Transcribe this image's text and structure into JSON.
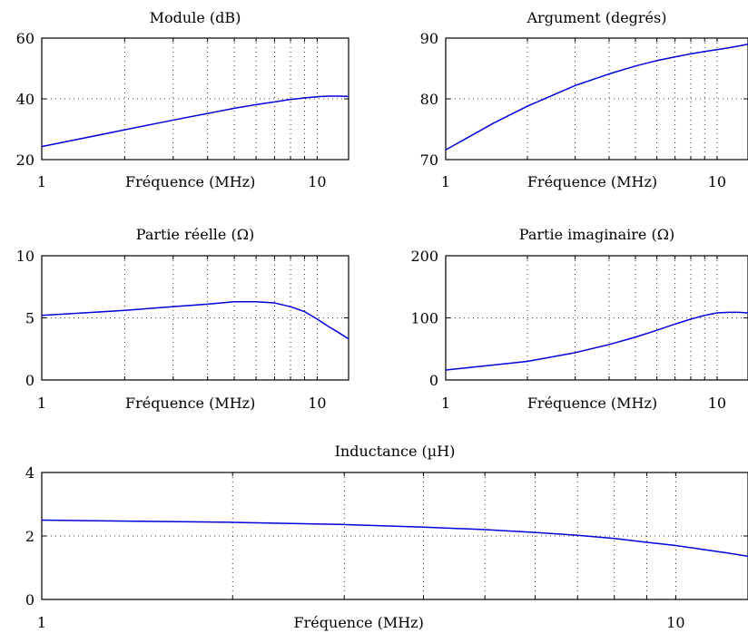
{
  "chart_data": [
    {
      "type": "line",
      "title": "Module (dB)",
      "xlabel": "Fréquence (MHz)",
      "ylabel": "",
      "x_scale": "log",
      "xlim": [
        1,
        13
      ],
      "ylim": [
        20,
        60
      ],
      "x_ticks": [
        1,
        10
      ],
      "x_tick_labels": [
        "1",
        "10"
      ],
      "y_ticks": [
        20,
        40,
        60
      ],
      "y_tick_labels": [
        "20",
        "40",
        "60"
      ],
      "grid": true,
      "x": [
        1,
        2,
        3,
        4,
        5,
        6,
        7,
        8,
        9,
        10,
        11,
        12,
        13
      ],
      "y": [
        24.3,
        29.8,
        33.0,
        35.2,
        36.9,
        38.1,
        39.0,
        39.8,
        40.3,
        40.7,
        40.9,
        40.9,
        40.8
      ]
    },
    {
      "type": "line",
      "title": "Argument (degrés)",
      "xlabel": "Fréquence (MHz)",
      "ylabel": "",
      "x_scale": "log",
      "xlim": [
        1,
        13
      ],
      "ylim": [
        70,
        90
      ],
      "x_ticks": [
        1,
        10
      ],
      "x_tick_labels": [
        "1",
        "10"
      ],
      "y_ticks": [
        70,
        80,
        90
      ],
      "y_tick_labels": [
        "70",
        "80",
        "90"
      ],
      "grid": true,
      "x": [
        1,
        1.5,
        2,
        3,
        4,
        5,
        6,
        7,
        8,
        9,
        10,
        11,
        12,
        13
      ],
      "y": [
        71.6,
        76.0,
        78.8,
        82.2,
        84.1,
        85.4,
        86.3,
        86.9,
        87.4,
        87.8,
        88.1,
        88.4,
        88.7,
        89.0
      ]
    },
    {
      "type": "line",
      "title": "Partie réelle (Ω)",
      "xlabel": "Fréquence (MHz)",
      "ylabel": "",
      "x_scale": "log",
      "xlim": [
        1,
        13
      ],
      "ylim": [
        0,
        10
      ],
      "x_ticks": [
        1,
        10
      ],
      "x_tick_labels": [
        "1",
        "10"
      ],
      "y_ticks": [
        0,
        5,
        10
      ],
      "y_tick_labels": [
        "0",
        "5",
        "10"
      ],
      "grid": true,
      "x": [
        1,
        2,
        3,
        4,
        5,
        6,
        7,
        8,
        9,
        10,
        11,
        12,
        13
      ],
      "y": [
        5.2,
        5.6,
        5.9,
        6.1,
        6.3,
        6.3,
        6.2,
        5.9,
        5.5,
        4.9,
        4.3,
        3.8,
        3.3
      ]
    },
    {
      "type": "line",
      "title": "Partie imaginaire (Ω)",
      "xlabel": "Fréquence (MHz)",
      "ylabel": "",
      "x_scale": "log",
      "xlim": [
        1,
        13
      ],
      "ylim": [
        0,
        200
      ],
      "x_ticks": [
        1,
        10
      ],
      "x_tick_labels": [
        "1",
        "10"
      ],
      "y_ticks": [
        0,
        100,
        200
      ],
      "y_tick_labels": [
        "0",
        "100",
        "200"
      ],
      "grid": true,
      "x": [
        1,
        2,
        3,
        4,
        5,
        6,
        7,
        8,
        9,
        10,
        11,
        12,
        13
      ],
      "y": [
        16,
        30,
        44,
        57,
        69,
        80,
        90,
        98,
        104,
        108,
        109,
        109,
        108
      ]
    },
    {
      "type": "line",
      "title": "Inductance (µH)",
      "xlabel": "Fréquence (MHz)",
      "ylabel": "",
      "x_scale": "log",
      "xlim": [
        1,
        13
      ],
      "ylim": [
        0,
        4
      ],
      "x_ticks": [
        1,
        10
      ],
      "x_tick_labels": [
        "1",
        "10"
      ],
      "y_ticks": [
        0,
        2,
        4
      ],
      "y_tick_labels": [
        "0",
        "2",
        "4"
      ],
      "grid": true,
      "x": [
        1,
        2,
        3,
        4,
        5,
        6,
        7,
        8,
        9,
        10,
        11,
        12,
        13
      ],
      "y": [
        2.5,
        2.43,
        2.36,
        2.28,
        2.2,
        2.11,
        2.02,
        1.92,
        1.8,
        1.7,
        1.58,
        1.47,
        1.36
      ]
    }
  ],
  "style": {
    "line_color": "#0000dd",
    "axis_color": "#000000",
    "grid_color": "#000000"
  }
}
